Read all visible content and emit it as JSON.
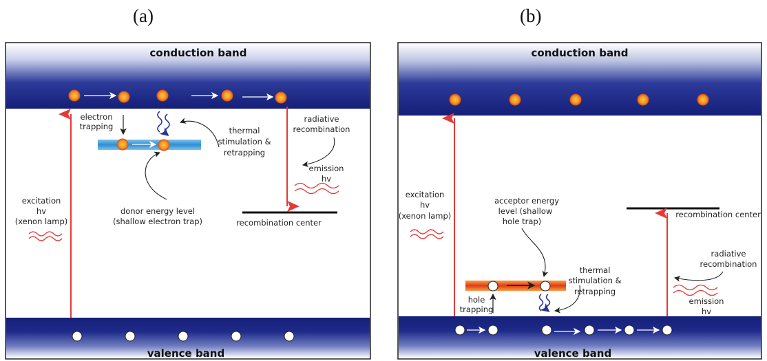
{
  "panel_a": {
    "label": "(a)",
    "conduction_band": "conduction band",
    "valence_band": "valence band",
    "electron_trapping": [
      "electron",
      "trapping"
    ],
    "thermal": [
      "thermal",
      "stimulation &",
      "retrapping"
    ],
    "radiative": [
      "radiative",
      "recombination"
    ],
    "emission": [
      "emission",
      "hv"
    ],
    "excitation": [
      "excitation",
      "hv",
      "(xenon lamp)"
    ],
    "donor": [
      "donor  energy level",
      "(shallow electron trap)"
    ],
    "recombination_center": "recombination center"
  },
  "panel_b": {
    "label": "(b)",
    "conduction_band": "conduction band",
    "valence_band": "valence band",
    "excitation": [
      "excitation",
      "hv",
      "(xenon lamp)"
    ],
    "acceptor": [
      "acceptor energy",
      "level (shallow",
      "hole trap)"
    ],
    "thermal": [
      "thermal",
      "stimulation &",
      "retrapping"
    ],
    "hole_trapping": [
      "hole",
      "trapping"
    ],
    "recombination_center": "recombination center",
    "radiative": [
      "radiative",
      "recombination"
    ],
    "emission": [
      "emission",
      "hv"
    ]
  },
  "colors": {
    "band_dark": "#1a237e",
    "band_light": "#ffffff",
    "arrow_red": "#e53935",
    "electron_orange": "#f57c00",
    "electron_core": "#fbc02d",
    "donor_blue": "#3a9ad9",
    "acceptor_red": "#e8401c",
    "wave_blue": "#283593"
  }
}
